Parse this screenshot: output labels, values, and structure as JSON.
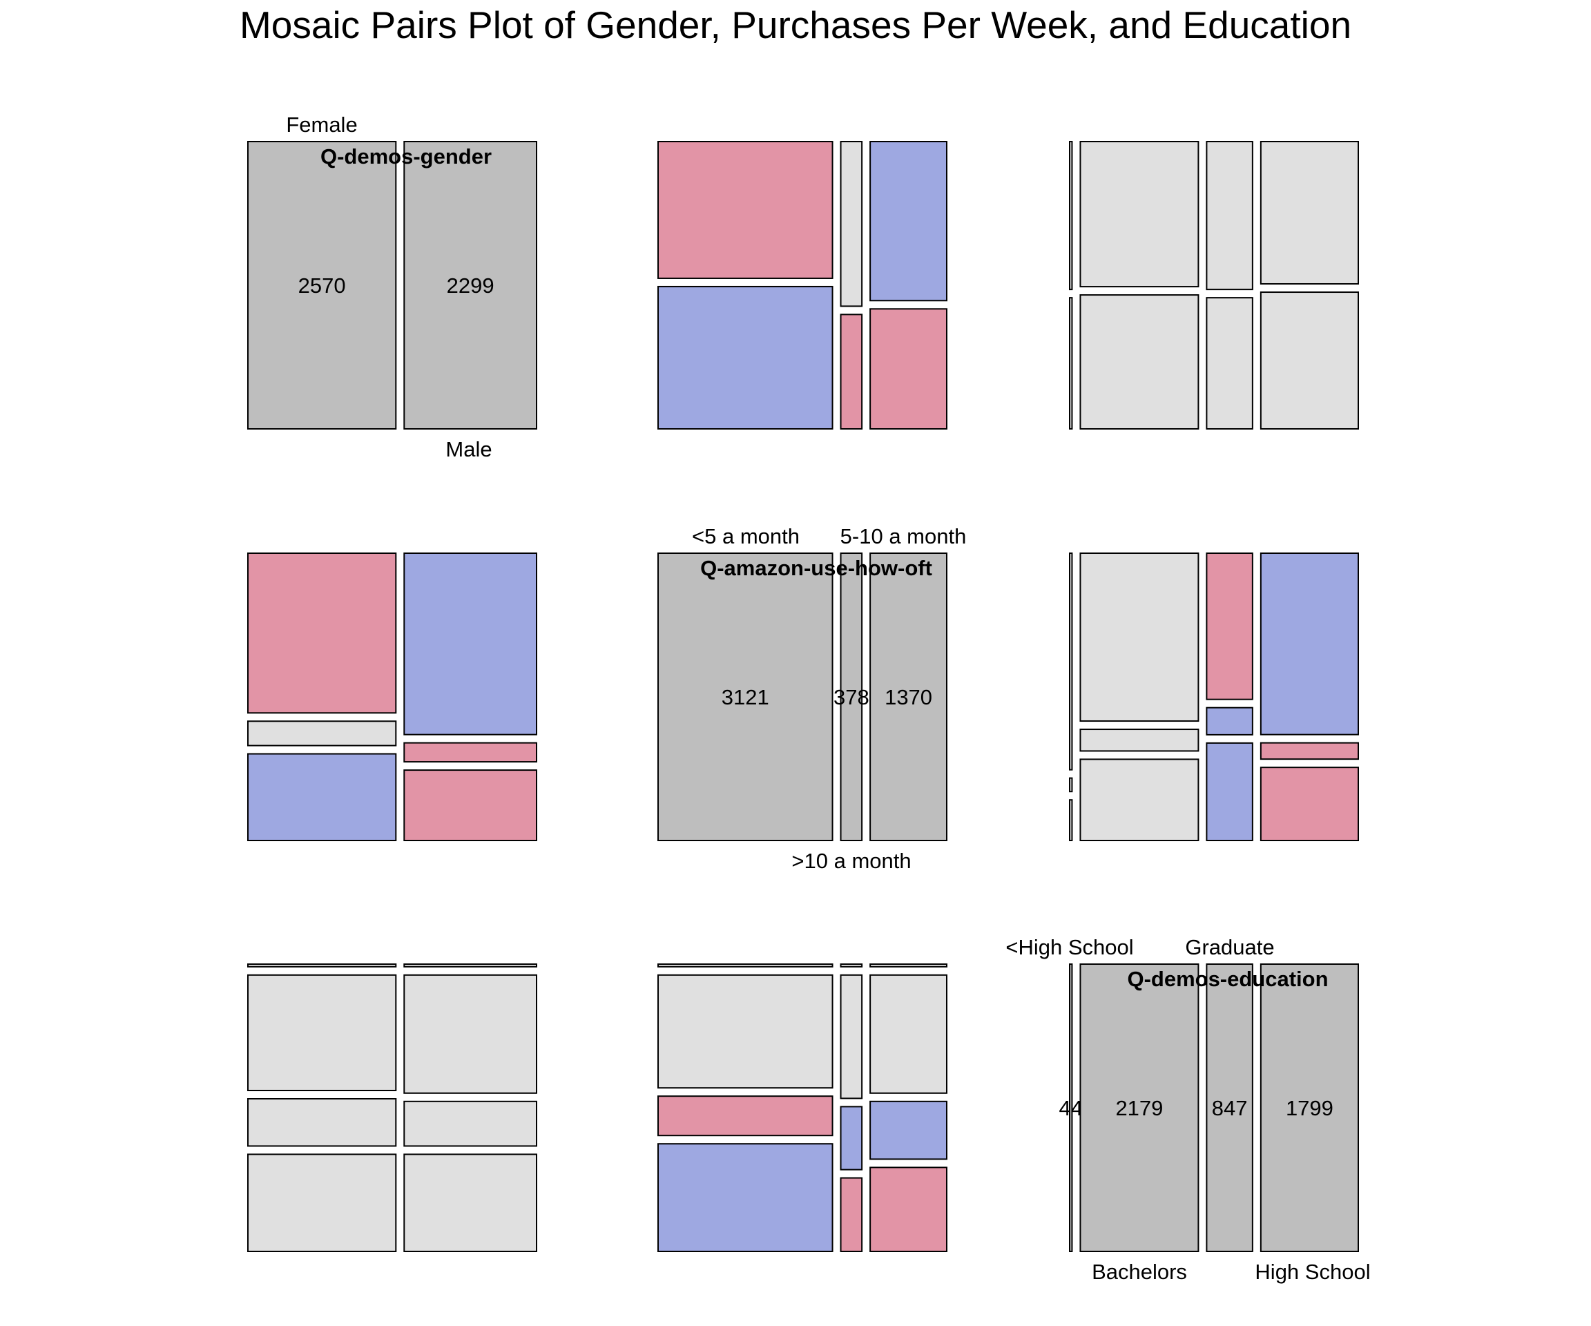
{
  "chart_data": {
    "type": "mosaic",
    "title": "Mosaic Pairs Plot of Gender, Purchases Per Week, and Education",
    "colors": {
      "neutral_diag": "#bebebe",
      "neutral": "#e0e0e0",
      "positive": "#9ea8e1",
      "negative": "#e294a6",
      "border": "#000000"
    },
    "variables": [
      {
        "name": "Q-demos-gender",
        "levels": [
          "Female",
          "Male"
        ],
        "counts": [
          2570,
          2299
        ],
        "count_labels": [
          "2570",
          "2299"
        ]
      },
      {
        "name": "Q-amazon-use-how-oft",
        "levels": [
          "<5 a month",
          ">10 a month",
          "5-10 a month"
        ],
        "counts": [
          3121,
          378,
          1370
        ],
        "count_labels": [
          "3121",
          "378",
          "1370"
        ]
      },
      {
        "name": "Q-demos-education",
        "levels": [
          "<High School",
          "Bachelors",
          "Graduate",
          "High School"
        ],
        "counts": [
          44,
          2179,
          847,
          1799
        ],
        "count_labels": [
          "44",
          "2179",
          "847",
          "1799"
        ]
      }
    ],
    "panels": [
      {
        "row": 0,
        "col": 1,
        "x_var": "Q-amazon-use-how-oft",
        "y_var": "Q-demos-gender",
        "columns": [
          {
            "level": "<5 a month",
            "segments": [
              {
                "level": "Female",
                "prop": 0.49,
                "shade": "negative"
              },
              {
                "level": "Male",
                "prop": 0.51,
                "shade": "positive"
              }
            ]
          },
          {
            "level": ">10 a month",
            "segments": [
              {
                "level": "Female",
                "prop": 0.59,
                "shade": "neutral"
              },
              {
                "level": "Male",
                "prop": 0.41,
                "shade": "negative"
              }
            ]
          },
          {
            "level": "5-10 a month",
            "segments": [
              {
                "level": "Female",
                "prop": 0.57,
                "shade": "positive"
              },
              {
                "level": "Male",
                "prop": 0.43,
                "shade": "negative"
              }
            ]
          }
        ]
      },
      {
        "row": 0,
        "col": 2,
        "x_var": "Q-demos-education",
        "y_var": "Q-demos-gender",
        "columns": [
          {
            "level": "<High School",
            "segments": [
              {
                "level": "Female",
                "prop": 0.53,
                "shade": "neutral"
              },
              {
                "level": "Male",
                "prop": 0.47,
                "shade": "neutral"
              }
            ]
          },
          {
            "level": "Bachelors",
            "segments": [
              {
                "level": "Female",
                "prop": 0.52,
                "shade": "neutral"
              },
              {
                "level": "Male",
                "prop": 0.48,
                "shade": "neutral"
              }
            ]
          },
          {
            "level": "Graduate",
            "segments": [
              {
                "level": "Female",
                "prop": 0.53,
                "shade": "neutral"
              },
              {
                "level": "Male",
                "prop": 0.47,
                "shade": "neutral"
              }
            ]
          },
          {
            "level": "High School",
            "segments": [
              {
                "level": "Female",
                "prop": 0.51,
                "shade": "neutral"
              },
              {
                "level": "Male",
                "prop": 0.49,
                "shade": "neutral"
              }
            ]
          }
        ]
      },
      {
        "row": 1,
        "col": 0,
        "x_var": "Q-demos-gender",
        "y_var": "Q-amazon-use-how-oft",
        "columns": [
          {
            "level": "Female",
            "segments": [
              {
                "level": "<5 a month",
                "prop": 0.59,
                "shade": "negative"
              },
              {
                "level": ">10 a month",
                "prop": 0.09,
                "shade": "neutral"
              },
              {
                "level": "5-10 a month",
                "prop": 0.32,
                "shade": "positive"
              }
            ]
          },
          {
            "level": "Male",
            "segments": [
              {
                "level": "<5 a month",
                "prop": 0.67,
                "shade": "positive"
              },
              {
                "level": ">10 a month",
                "prop": 0.07,
                "shade": "negative"
              },
              {
                "level": "5-10 a month",
                "prop": 0.26,
                "shade": "negative"
              }
            ]
          }
        ]
      },
      {
        "row": 1,
        "col": 2,
        "x_var": "Q-demos-education",
        "y_var": "Q-amazon-use-how-oft",
        "columns": [
          {
            "level": "<High School",
            "segments": [
              {
                "level": "<5 a month",
                "prop": 0.8,
                "shade": "neutral"
              },
              {
                "level": ">10 a month",
                "prop": 0.05,
                "shade": "neutral"
              },
              {
                "level": "5-10 a month",
                "prop": 0.15,
                "shade": "neutral"
              }
            ]
          },
          {
            "level": "Bachelors",
            "segments": [
              {
                "level": "<5 a month",
                "prop": 0.62,
                "shade": "neutral"
              },
              {
                "level": ">10 a month",
                "prop": 0.08,
                "shade": "neutral"
              },
              {
                "level": "5-10 a month",
                "prop": 0.3,
                "shade": "neutral"
              }
            ]
          },
          {
            "level": "Graduate",
            "segments": [
              {
                "level": "<5 a month",
                "prop": 0.54,
                "shade": "negative"
              },
              {
                "level": ">10 a month",
                "prop": 0.1,
                "shade": "positive"
              },
              {
                "level": "5-10 a month",
                "prop": 0.36,
                "shade": "positive"
              }
            ]
          },
          {
            "level": "High School",
            "segments": [
              {
                "level": "<5 a month",
                "prop": 0.67,
                "shade": "positive"
              },
              {
                "level": ">10 a month",
                "prop": 0.06,
                "shade": "negative"
              },
              {
                "level": "5-10 a month",
                "prop": 0.27,
                "shade": "negative"
              }
            ]
          }
        ]
      },
      {
        "row": 2,
        "col": 0,
        "x_var": "Q-demos-gender",
        "y_var": "Q-demos-education",
        "columns": [
          {
            "level": "Female",
            "segments": [
              {
                "level": "<High School",
                "prop": 0.01,
                "shade": "neutral"
              },
              {
                "level": "Bachelors",
                "prop": 0.44,
                "shade": "neutral"
              },
              {
                "level": "Graduate",
                "prop": 0.18,
                "shade": "neutral"
              },
              {
                "level": "High School",
                "prop": 0.37,
                "shade": "neutral"
              }
            ]
          },
          {
            "level": "Male",
            "segments": [
              {
                "level": "<High School",
                "prop": 0.01,
                "shade": "neutral"
              },
              {
                "level": "Bachelors",
                "prop": 0.45,
                "shade": "neutral"
              },
              {
                "level": "Graduate",
                "prop": 0.17,
                "shade": "neutral"
              },
              {
                "level": "High School",
                "prop": 0.37,
                "shade": "neutral"
              }
            ]
          }
        ]
      },
      {
        "row": 2,
        "col": 1,
        "x_var": "Q-amazon-use-how-oft",
        "y_var": "Q-demos-education",
        "columns": [
          {
            "level": "<5 a month",
            "segments": [
              {
                "level": "<High School",
                "prop": 0.01,
                "shade": "neutral"
              },
              {
                "level": "Bachelors",
                "prop": 0.43,
                "shade": "neutral"
              },
              {
                "level": "Graduate",
                "prop": 0.15,
                "shade": "negative"
              },
              {
                "level": "High School",
                "prop": 0.41,
                "shade": "positive"
              }
            ]
          },
          {
            "level": ">10 a month",
            "segments": [
              {
                "level": "<High School",
                "prop": 0.01,
                "shade": "neutral"
              },
              {
                "level": "Bachelors",
                "prop": 0.47,
                "shade": "neutral"
              },
              {
                "level": "Graduate",
                "prop": 0.24,
                "shade": "positive"
              },
              {
                "level": "High School",
                "prop": 0.28,
                "shade": "negative"
              }
            ]
          },
          {
            "level": "5-10 a month",
            "segments": [
              {
                "level": "<High School",
                "prop": 0.01,
                "shade": "neutral"
              },
              {
                "level": "Bachelors",
                "prop": 0.45,
                "shade": "neutral"
              },
              {
                "level": "Graduate",
                "prop": 0.22,
                "shade": "positive"
              },
              {
                "level": "High School",
                "prop": 0.32,
                "shade": "negative"
              }
            ]
          }
        ]
      }
    ]
  }
}
